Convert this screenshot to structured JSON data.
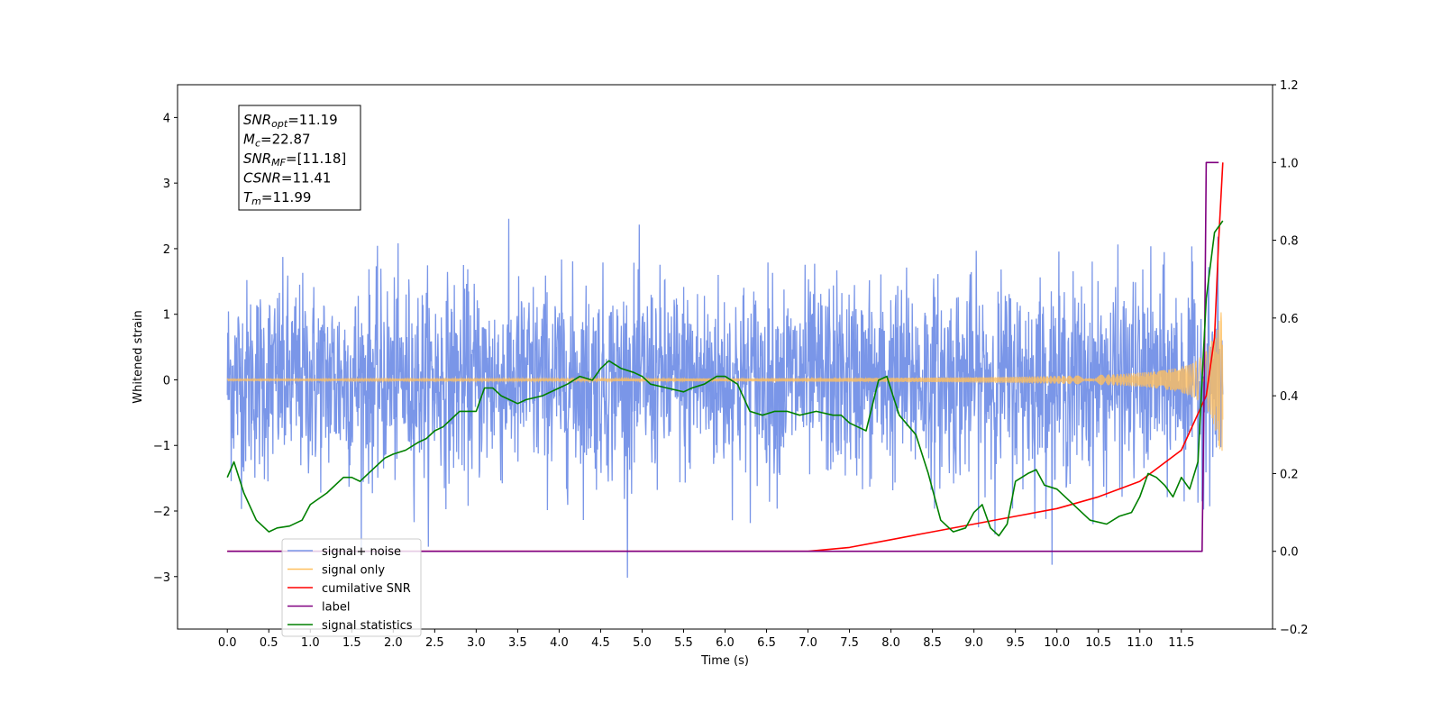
{
  "chart_data": {
    "type": "line",
    "xlabel": "Time (s)",
    "ylabel": "Whitened strain",
    "xlim": [
      -0.6,
      12.6
    ],
    "ylim": [
      -3.8,
      4.5
    ],
    "y2lim": [
      -0.2,
      1.2
    ],
    "x_ticks": [
      0.0,
      0.5,
      1.0,
      1.5,
      2.0,
      2.5,
      3.0,
      3.5,
      4.0,
      4.5,
      5.0,
      5.5,
      6.0,
      6.5,
      7.0,
      7.5,
      8.0,
      8.5,
      9.0,
      9.5,
      10.0,
      10.5,
      11.0,
      11.5
    ],
    "x_tick_labels": [
      "0.0",
      "0.5",
      "1.0",
      "1.5",
      "2.0",
      "2.5",
      "3.0",
      "3.5",
      "4.0",
      "4.5",
      "5.0",
      "5.5",
      "6.0",
      "6.5",
      "7.0",
      "7.5",
      "8.0",
      "8.5",
      "9.0",
      "9.5",
      "10.0",
      "10.5",
      "11.0",
      "11.5"
    ],
    "y_ticks": [
      -3,
      -2,
      -1,
      0,
      1,
      2,
      3,
      4
    ],
    "y_tick_labels": [
      "−3",
      "−2",
      "−1",
      "0",
      "1",
      "2",
      "3",
      "4"
    ],
    "y2_ticks": [
      -0.2,
      0.0,
      0.2,
      0.4,
      0.6,
      0.8,
      1.0,
      1.2
    ],
    "y2_tick_labels": [
      "−0.2",
      "0.0",
      "0.2",
      "0.4",
      "0.6",
      "0.8",
      "1.0",
      "1.2"
    ],
    "series": [
      {
        "name": "signal+ noise",
        "color": "#7a96e8",
        "axis": "left",
        "x_range": [
          0.0,
          12.0
        ],
        "amplitude_std": 0.75
      },
      {
        "name": "signal only",
        "color": "#ffbf5f",
        "axis": "left",
        "x_range": [
          0.0,
          12.0
        ],
        "amplitude_end": 1.1
      },
      {
        "name": "cumilative SNR",
        "color": "#ff0000",
        "axis": "right",
        "x": [
          0.0,
          7.0,
          7.5,
          8.0,
          8.5,
          9.0,
          9.5,
          10.0,
          10.5,
          11.0,
          11.5,
          11.8,
          11.9,
          11.95,
          12.0
        ],
        "y": [
          0.0,
          0.0,
          0.01,
          0.03,
          0.05,
          0.07,
          0.09,
          0.11,
          0.14,
          0.18,
          0.26,
          0.4,
          0.55,
          0.8,
          1.0
        ]
      },
      {
        "name": "label",
        "color": "#800080",
        "axis": "right",
        "x": [
          0.0,
          11.75,
          11.78,
          11.8,
          11.95
        ],
        "y": [
          0.0,
          0.0,
          0.5,
          1.0,
          1.0
        ]
      },
      {
        "name": "signal statistics",
        "color": "#008000",
        "axis": "right",
        "x": [
          0.0,
          0.08,
          0.2,
          0.35,
          0.5,
          0.6,
          0.75,
          0.9,
          1.0,
          1.2,
          1.4,
          1.5,
          1.6,
          1.75,
          1.9,
          2.0,
          2.15,
          2.3,
          2.4,
          2.5,
          2.6,
          2.7,
          2.8,
          2.9,
          3.0,
          3.1,
          3.2,
          3.3,
          3.5,
          3.6,
          3.8,
          4.0,
          4.1,
          4.25,
          4.4,
          4.5,
          4.6,
          4.75,
          4.9,
          5.0,
          5.1,
          5.3,
          5.5,
          5.6,
          5.75,
          5.9,
          6.0,
          6.15,
          6.3,
          6.45,
          6.6,
          6.75,
          6.9,
          7.1,
          7.3,
          7.4,
          7.5,
          7.6,
          7.7,
          7.85,
          7.95,
          8.1,
          8.3,
          8.45,
          8.6,
          8.75,
          8.9,
          9.0,
          9.1,
          9.2,
          9.3,
          9.4,
          9.5,
          9.65,
          9.75,
          9.85,
          10.0,
          10.2,
          10.4,
          10.6,
          10.75,
          10.9,
          11.0,
          11.1,
          11.2,
          11.3,
          11.4,
          11.5,
          11.6,
          11.7,
          11.8,
          11.9,
          12.0
        ],
        "y": [
          0.19,
          0.23,
          0.15,
          0.08,
          0.05,
          0.06,
          0.065,
          0.08,
          0.12,
          0.15,
          0.19,
          0.19,
          0.18,
          0.21,
          0.24,
          0.25,
          0.26,
          0.28,
          0.29,
          0.31,
          0.32,
          0.34,
          0.36,
          0.36,
          0.36,
          0.42,
          0.42,
          0.4,
          0.38,
          0.39,
          0.4,
          0.42,
          0.43,
          0.45,
          0.44,
          0.47,
          0.49,
          0.47,
          0.46,
          0.45,
          0.43,
          0.42,
          0.41,
          0.42,
          0.43,
          0.45,
          0.45,
          0.43,
          0.36,
          0.35,
          0.36,
          0.36,
          0.35,
          0.36,
          0.35,
          0.35,
          0.33,
          0.32,
          0.31,
          0.44,
          0.45,
          0.35,
          0.3,
          0.2,
          0.08,
          0.05,
          0.06,
          0.1,
          0.12,
          0.06,
          0.04,
          0.07,
          0.18,
          0.2,
          0.21,
          0.17,
          0.16,
          0.12,
          0.08,
          0.07,
          0.09,
          0.1,
          0.14,
          0.2,
          0.19,
          0.17,
          0.14,
          0.19,
          0.16,
          0.23,
          0.65,
          0.82,
          0.85
        ]
      }
    ],
    "annotation": {
      "lines": [
        {
          "sym": "SNR",
          "sub": "opt",
          "val": "=11.19"
        },
        {
          "sym": "M",
          "sub": "c",
          "val": "=22.87"
        },
        {
          "sym": "SNR",
          "sub": "MF",
          "val": "=[11.18]"
        },
        {
          "sym": "CSNR",
          "sub": "",
          "val": "=11.41"
        },
        {
          "sym": "T",
          "sub": "m",
          "val": "=11.99"
        }
      ]
    },
    "legend": {
      "position": "lower-left",
      "entries": [
        {
          "label": "signal+ noise",
          "color": "#7a96e8"
        },
        {
          "label": "signal only",
          "color": "#ffbf5f"
        },
        {
          "label": "cumilative SNR",
          "color": "#ff0000"
        },
        {
          "label": "label",
          "color": "#800080"
        },
        {
          "label": "signal statistics",
          "color": "#008000"
        }
      ]
    },
    "grid": false
  }
}
